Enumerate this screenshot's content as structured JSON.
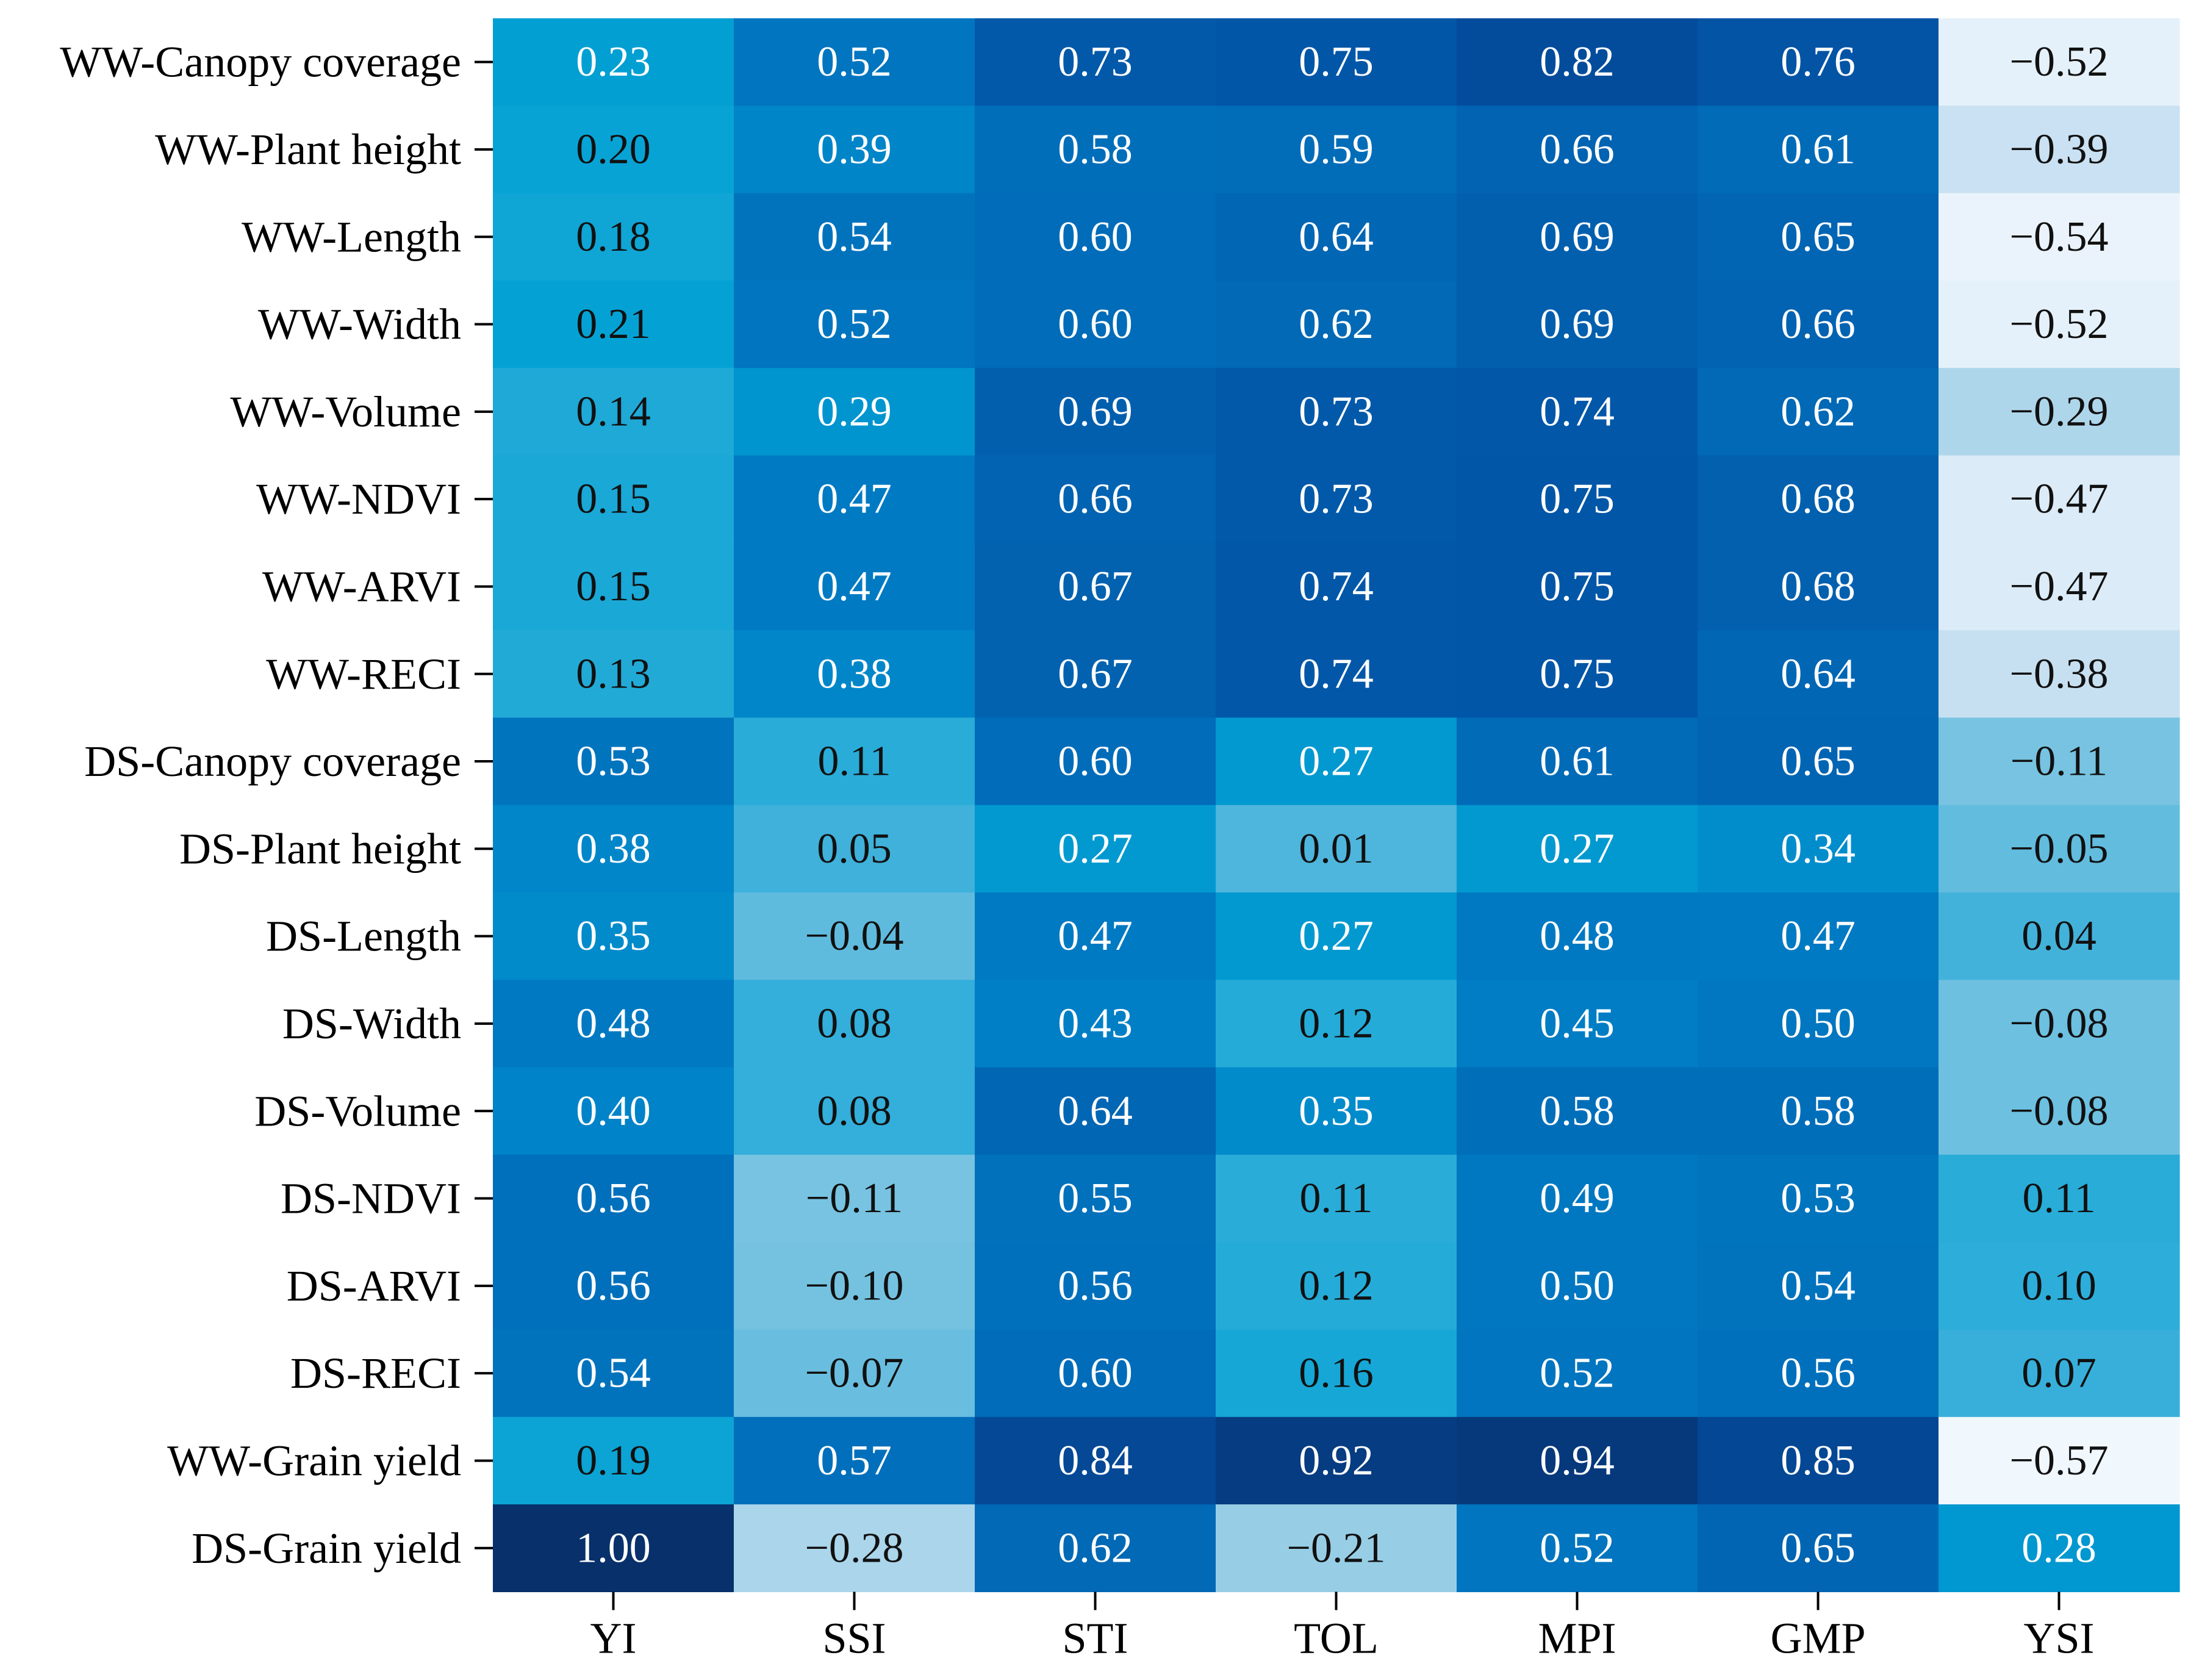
{
  "chart_data": {
    "type": "heatmap",
    "title": "",
    "xlabel": "",
    "ylabel": "",
    "columns": [
      "YI",
      "SSI",
      "STI",
      "TOL",
      "MPI",
      "GMP",
      "YSI"
    ],
    "rows": [
      "WW-Canopy coverage",
      "WW-Plant height",
      "WW-Length",
      "WW-Width",
      "WW-Volume",
      "WW-NDVI",
      "WW-ARVI",
      "WW-RECI",
      "DS-Canopy coverage",
      "DS-Plant height",
      "DS-Length",
      "DS-Width",
      "DS-Volume",
      "DS-NDVI",
      "DS-ARVI",
      "DS-RECI",
      "WW-Grain yield",
      "DS-Grain yield"
    ],
    "values": [
      [
        0.23,
        0.52,
        0.73,
        0.75,
        0.82,
        0.76,
        -0.52
      ],
      [
        0.2,
        0.39,
        0.58,
        0.59,
        0.66,
        0.61,
        -0.39
      ],
      [
        0.18,
        0.54,
        0.6,
        0.64,
        0.69,
        0.65,
        -0.54
      ],
      [
        0.21,
        0.52,
        0.6,
        0.62,
        0.69,
        0.66,
        -0.52
      ],
      [
        0.14,
        0.29,
        0.69,
        0.73,
        0.74,
        0.62,
        -0.29
      ],
      [
        0.15,
        0.47,
        0.66,
        0.73,
        0.75,
        0.68,
        -0.47
      ],
      [
        0.15,
        0.47,
        0.67,
        0.74,
        0.75,
        0.68,
        -0.47
      ],
      [
        0.13,
        0.38,
        0.67,
        0.74,
        0.75,
        0.64,
        -0.38
      ],
      [
        0.53,
        0.11,
        0.6,
        0.27,
        0.61,
        0.65,
        -0.11
      ],
      [
        0.38,
        0.05,
        0.27,
        0.01,
        0.27,
        0.34,
        -0.05
      ],
      [
        0.35,
        -0.04,
        0.47,
        0.27,
        0.48,
        0.47,
        0.04
      ],
      [
        0.48,
        0.08,
        0.43,
        0.12,
        0.45,
        0.5,
        -0.08
      ],
      [
        0.4,
        0.08,
        0.64,
        0.35,
        0.58,
        0.58,
        -0.08
      ],
      [
        0.56,
        -0.11,
        0.55,
        0.11,
        0.49,
        0.53,
        0.11
      ],
      [
        0.56,
        -0.1,
        0.56,
        0.12,
        0.5,
        0.54,
        0.1
      ],
      [
        0.54,
        -0.07,
        0.6,
        0.16,
        0.52,
        0.56,
        0.07
      ],
      [
        0.19,
        0.57,
        0.84,
        0.92,
        0.94,
        0.85,
        -0.57
      ],
      [
        1.0,
        -0.28,
        0.62,
        -0.21,
        0.52,
        0.65,
        0.28
      ]
    ],
    "vmin": -0.57,
    "vmax": 1.0,
    "colormap": [
      "#f0f7fd",
      "#c6dff1",
      "#8ecbe3",
      "#4bb4dc",
      "#02a2d4",
      "#0081c7",
      "#016bb8",
      "#034ea0",
      "#08306b"
    ],
    "text_dark_color": "#111111",
    "text_light_color": "#ffffff"
  }
}
